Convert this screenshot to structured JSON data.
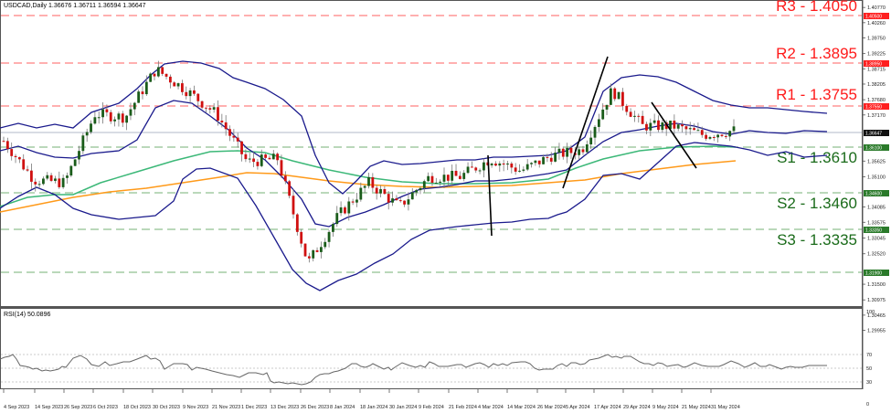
{
  "header": {
    "symbol": "USDCAD,Daily",
    "ohlc": "1.36676 1.36711 1.36594 1.36647"
  },
  "rsi": {
    "label": "RSI(14) 50.0896",
    "levels": [
      "100",
      "70",
      "50",
      "30",
      "0"
    ]
  },
  "levels": {
    "r3": "R3 - 1.4050",
    "r2": "R2 - 1.3895",
    "r1": "R1 - 1.3755",
    "s1": "S1 - 1.3610",
    "s2": "S2 - 1.3460",
    "s3": "S3 - 1.3335"
  },
  "price_axis": {
    "ticks": [
      "1.40770",
      "1.40260",
      "1.39750",
      "1.39225",
      "1.38715",
      "1.38205",
      "1.37680",
      "1.37170",
      "1.35625",
      "1.35100",
      "1.34085",
      "1.33575",
      "1.33045",
      "1.32520",
      "1.31500",
      "1.30975",
      "1.30465",
      "1.29955"
    ],
    "tags": {
      "r3": "1.40500",
      "r2": "1.38950",
      "r1": "1.37550",
      "current": "1.36647",
      "s1": "1.36100",
      "s2": "1.34600",
      "s3": "1.33350",
      "s4": "1.31900"
    }
  },
  "time_axis": [
    "4 Sep 2023",
    "14 Sep 2023",
    "26 Sep 2023",
    "6 Oct 2023",
    "18 Oct 2023",
    "30 Oct 2023",
    "9 Nov 2023",
    "21 Nov 2023",
    "1 Dec 2023",
    "13 Dec 2023",
    "26 Dec 2023",
    "8 Jan 2024",
    "18 Jan 2024",
    "30 Jan 2024",
    "9 Feb 2024",
    "21 Feb 2024",
    "4 Mar 2024",
    "14 Mar 2024",
    "26 Mar 2024",
    "5 Apr 2024",
    "17 Apr 2024",
    "29 Apr 2024",
    "9 May 2024",
    "21 May 2024",
    "31 May 2024"
  ],
  "colors": {
    "resistance": "#ff1a1a",
    "resistance_line": "#ff8080",
    "support": "#1a6b1a",
    "support_line": "#90c090",
    "bull_candle": "#1a5c1a",
    "bear_candle": "#d01010",
    "bollinger": "#1a1a8c",
    "ma_green": "#3cb878",
    "ma_orange": "#ff9a1a",
    "current_line": "#b0b8c8"
  },
  "chart_data": {
    "type": "candlestick",
    "title": "USDCAD, Daily",
    "ohlc_last": {
      "open": 1.36676,
      "high": 1.36711,
      "low": 1.36594,
      "close": 1.36647
    },
    "x_range": [
      "4 Sep 2023",
      "31 May 2024"
    ],
    "ylim": [
      1.29955,
      1.4077
    ],
    "horizontal_levels": [
      {
        "name": "R3",
        "value": 1.405,
        "type": "resistance"
      },
      {
        "name": "R2",
        "value": 1.3895,
        "type": "resistance"
      },
      {
        "name": "R1",
        "value": 1.3755,
        "type": "resistance"
      },
      {
        "name": "S1",
        "value": 1.361,
        "type": "support"
      },
      {
        "name": "S2",
        "value": 1.346,
        "type": "support"
      },
      {
        "name": "S3",
        "value": 1.3335,
        "type": "support"
      },
      {
        "name": "S4",
        "value": 1.319,
        "type": "support"
      }
    ],
    "approx_closes": [
      {
        "date": "4 Sep 2023",
        "close": 1.363
      },
      {
        "date": "14 Sep 2023",
        "close": 1.35
      },
      {
        "date": "26 Sep 2023",
        "close": 1.349
      },
      {
        "date": "6 Oct 2023",
        "close": 1.372
      },
      {
        "date": "18 Oct 2023",
        "close": 1.371
      },
      {
        "date": "30 Oct 2023",
        "close": 1.387
      },
      {
        "date": "9 Nov 2023",
        "close": 1.38
      },
      {
        "date": "21 Nov 2023",
        "close": 1.372
      },
      {
        "date": "1 Dec 2023",
        "close": 1.356
      },
      {
        "date": "13 Dec 2023",
        "close": 1.357
      },
      {
        "date": "26 Dec 2023",
        "close": 1.322
      },
      {
        "date": "8 Jan 2024",
        "close": 1.338
      },
      {
        "date": "18 Jan 2024",
        "close": 1.349
      },
      {
        "date": "30 Jan 2024",
        "close": 1.341
      },
      {
        "date": "9 Feb 2024",
        "close": 1.351
      },
      {
        "date": "21 Feb 2024",
        "close": 1.351
      },
      {
        "date": "4 Mar 2024",
        "close": 1.357
      },
      {
        "date": "14 Mar 2024",
        "close": 1.353
      },
      {
        "date": "26 Mar 2024",
        "close": 1.358
      },
      {
        "date": "5 Apr 2024",
        "close": 1.36
      },
      {
        "date": "17 Apr 2024",
        "close": 1.38
      },
      {
        "date": "29 Apr 2024",
        "close": 1.368
      },
      {
        "date": "9 May 2024",
        "close": 1.368
      },
      {
        "date": "21 May 2024",
        "close": 1.365
      },
      {
        "date": "31 May 2024",
        "close": 1.3665
      }
    ],
    "indicators": [
      {
        "name": "Bollinger Bands",
        "color": "#1a1a8c"
      },
      {
        "name": "MA (green)",
        "color": "#3cb878"
      },
      {
        "name": "MA (orange)",
        "color": "#ff9a1a"
      }
    ],
    "rsi": {
      "name": "RSI(14)",
      "last": 50.0896,
      "ylim": [
        0,
        100
      ],
      "levels": [
        70,
        50,
        30
      ],
      "approx_values": [
        58,
        62,
        44,
        40,
        48,
        60,
        45,
        55,
        62,
        50,
        54,
        49,
        40,
        38,
        34,
        28,
        45,
        52,
        48,
        55,
        52,
        60,
        50,
        56,
        72,
        55,
        50,
        46,
        55,
        50
      ]
    }
  }
}
